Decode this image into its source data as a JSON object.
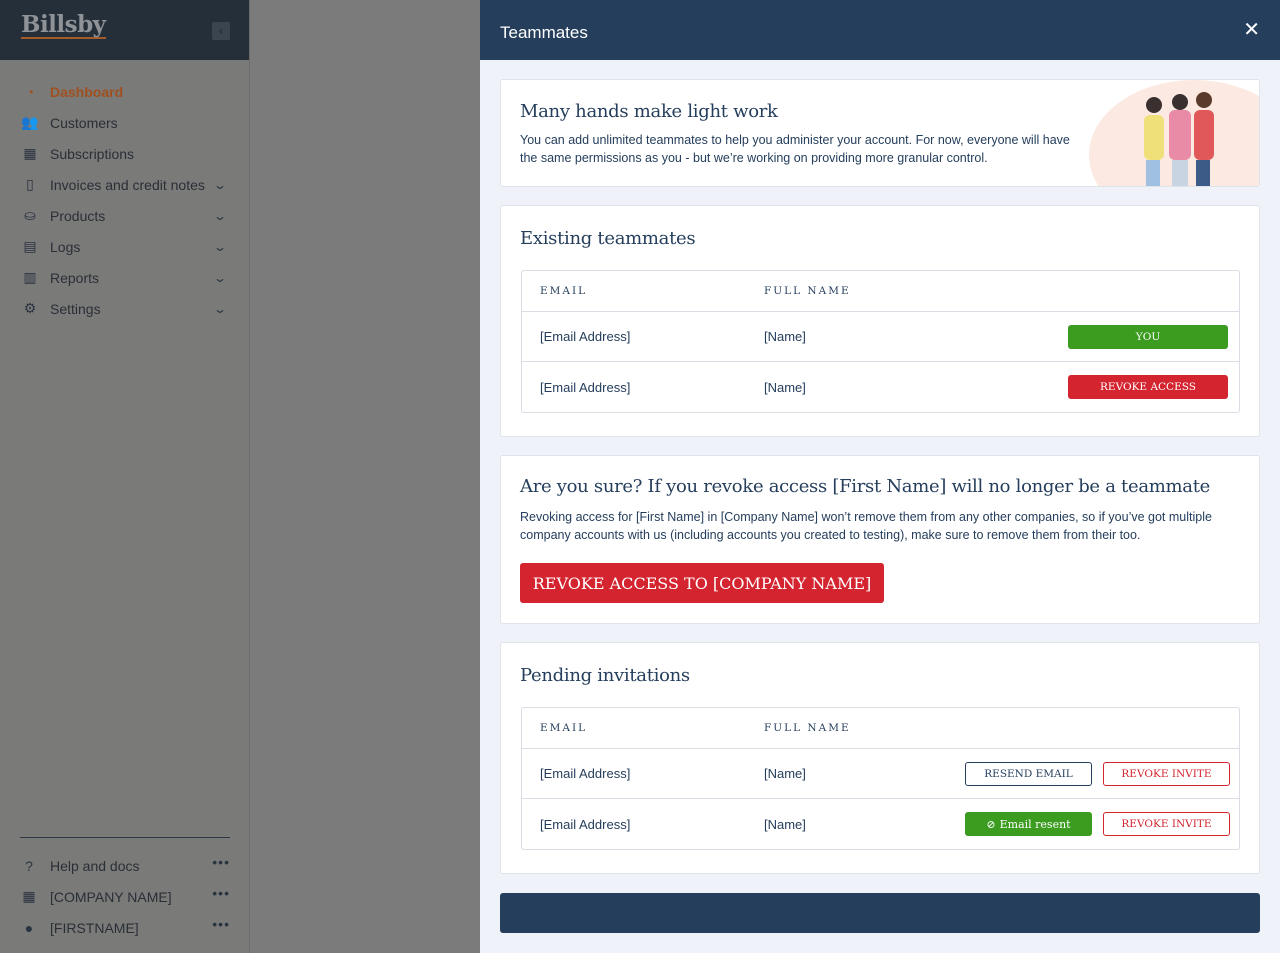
{
  "sidebar": {
    "logo": "Billsby",
    "items": [
      {
        "label": "Dashboard",
        "icon": "dashboard-icon",
        "glyph": "◔",
        "active": true
      },
      {
        "label": "Customers",
        "icon": "customers-icon",
        "glyph": "👥"
      },
      {
        "label": "Subscriptions",
        "icon": "calendar-icon",
        "glyph": "▦"
      },
      {
        "label": "Invoices and credit notes",
        "icon": "invoice-icon",
        "glyph": "▯",
        "chevron": true
      },
      {
        "label": "Products",
        "icon": "products-icon",
        "glyph": "⛀",
        "chevron": true
      },
      {
        "label": "Logs",
        "icon": "clipboard-icon",
        "glyph": "▤",
        "chevron": true
      },
      {
        "label": "Reports",
        "icon": "reports-icon",
        "glyph": "▥",
        "chevron": true
      },
      {
        "label": "Settings",
        "icon": "gear-icon",
        "glyph": "⚙",
        "chevron": true
      }
    ],
    "footer": [
      {
        "label": "Help and docs",
        "icon": "help-icon",
        "glyph": "?"
      },
      {
        "label": "[COMPANY NAME]",
        "icon": "building-icon",
        "glyph": "▦"
      },
      {
        "label": "[FIRSTNAME]",
        "icon": "user-icon",
        "glyph": "●"
      }
    ]
  },
  "panel": {
    "title": "Teammates",
    "intro": {
      "heading": "Many hands make light work",
      "text": "You can add unlimited teammates to help you administer your account. For now, everyone will have the same permissions as you - but we’re working on providing more granular control."
    },
    "existing": {
      "heading": "Existing teammates",
      "columns": [
        "EMAIL",
        "FULL NAME"
      ],
      "rows": [
        {
          "email": "[Email Address]",
          "name": "[Name]",
          "action": "YOU"
        },
        {
          "email": "[Email Address]",
          "name": "[Name]",
          "action": "REVOKE ACCESS"
        }
      ]
    },
    "confirm": {
      "heading": "Are you sure? If you revoke access [First Name] will no longer be a teammate",
      "text": "Revoking access for [First Name] in [Company Name] won’t remove them from any other companies, so if you’ve got multiple company accounts with us (including accounts you created to testing), make sure to remove them from their too.",
      "button": "REVOKE ACCESS TO [COMPANY NAME]"
    },
    "pending": {
      "heading": "Pending invitations",
      "columns": [
        "EMAIL",
        "FULL NAME"
      ],
      "rows": [
        {
          "email": "[Email Address]",
          "name": "[Name]",
          "action1": "RESEND EMAIL",
          "action2": "REVOKE INVITE"
        },
        {
          "email": "[Email Address]",
          "name": "[Name]",
          "action1": "Email resent",
          "action2": "REVOKE INVITE"
        }
      ]
    }
  }
}
